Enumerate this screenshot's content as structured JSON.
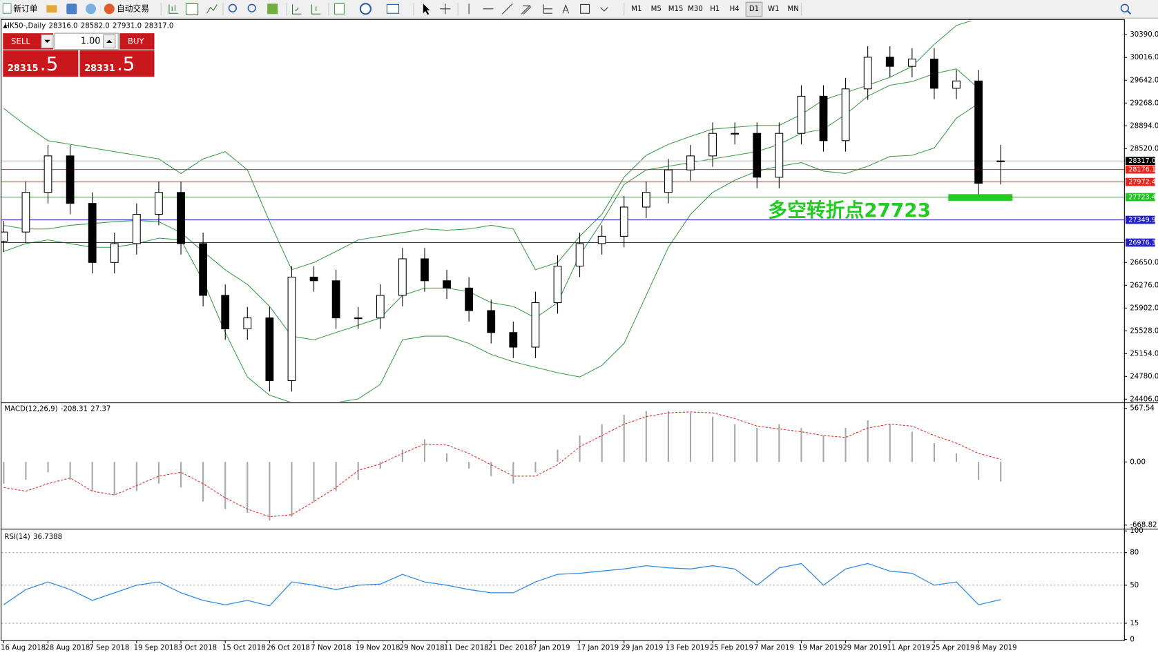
{
  "toolbar": {
    "new_order": "新订单",
    "auto_trading": "自动交易",
    "timeframes": [
      "M1",
      "M5",
      "M15",
      "M30",
      "H1",
      "H4",
      "D1",
      "W1",
      "MN"
    ],
    "active": "D1"
  },
  "trade_panel": {
    "sell": "SELL",
    "buy": "BUY",
    "lots": "1.00",
    "sell_price": "28315",
    "sell_pips": ".5",
    "buy_price": "28331",
    "buy_pips": ".5"
  },
  "chart_data": [
    {
      "type": "candlestick",
      "legend": {
        "name": "HK50-,Daily",
        "values": [
          "28316.0",
          "28582.0",
          "27931.0",
          "28317.0"
        ]
      },
      "categories": [
        "16 Aug 2018",
        null,
        "28 Aug 2018",
        null,
        "7 Sep 2018",
        null,
        "19 Sep 2018",
        null,
        "3 Oct 2018",
        null,
        "15 Oct 2018",
        null,
        "26 Oct 2018",
        null,
        "7 Nov 2018",
        null,
        "19 Nov 2018",
        null,
        "29 Nov 2018",
        null,
        "11 Dec 2018",
        null,
        "21 Dec 2018",
        null,
        "7 Jan 2019",
        null,
        "17 Jan 2019",
        null,
        "29 Jan 2019",
        null,
        "13 Feb 2019",
        null,
        "25 Feb 2019",
        null,
        "7 Mar 2019",
        null,
        "19 Mar 2019",
        null,
        "29 Mar 2019",
        null,
        "11 Apr 2019",
        null,
        "25 Apr 2019",
        null,
        "8 May 2019",
        null
      ],
      "open": [
        27000,
        27150,
        27800,
        28400,
        27620,
        26650,
        26960,
        27440,
        27800,
        26960,
        26110,
        25560,
        25740,
        24710,
        26410,
        26350,
        25740,
        25740,
        26110,
        26710,
        26350,
        26230,
        25860,
        25500,
        25260,
        25990,
        26590,
        26960,
        27080,
        27560,
        27800,
        28170,
        28400,
        28770,
        28770,
        28050,
        28770,
        29380,
        28650,
        29500,
        30020,
        29870,
        29990,
        29510,
        29630,
        28316
      ],
      "high": [
        27330,
        27980,
        28580,
        28580,
        27800,
        27140,
        27620,
        27980,
        27980,
        27140,
        26290,
        25920,
        25920,
        26590,
        26590,
        26530,
        25920,
        26290,
        26890,
        26890,
        26530,
        26410,
        26040,
        25680,
        26170,
        26770,
        27140,
        27260,
        27740,
        27980,
        28350,
        28580,
        28950,
        28950,
        28950,
        28950,
        29560,
        29560,
        29680,
        30200,
        30200,
        30170,
        30170,
        29810,
        29810,
        28582
      ],
      "low": [
        26820,
        26970,
        27620,
        27440,
        26470,
        26470,
        26780,
        27260,
        26780,
        25930,
        25380,
        25380,
        24530,
        24530,
        26170,
        25560,
        25560,
        25560,
        25930,
        26170,
        26050,
        25680,
        25320,
        25080,
        25080,
        25810,
        26410,
        26780,
        26900,
        27380,
        27620,
        27990,
        28220,
        28590,
        27870,
        27870,
        28590,
        28470,
        28470,
        29320,
        29690,
        29690,
        29330,
        29330,
        27770,
        27931
      ],
      "close": [
        27150,
        27800,
        28400,
        27620,
        26650,
        26960,
        27440,
        27800,
        26960,
        26110,
        25560,
        25740,
        24710,
        26410,
        26350,
        25740,
        25740,
        26110,
        26710,
        26350,
        26230,
        25860,
        25500,
        25260,
        25990,
        26590,
        26960,
        27080,
        27560,
        27800,
        28170,
        28400,
        28770,
        28770,
        28050,
        28770,
        29380,
        28650,
        29500,
        30020,
        29870,
        29990,
        29510,
        29630,
        27950,
        28317
      ],
      "bands": {
        "color": "#3a9d46",
        "upper": [
          29180,
          28900,
          28650,
          28590,
          28530,
          28470,
          28410,
          28350,
          28110,
          28350,
          28470,
          28170,
          27320,
          26530,
          26650,
          26830,
          27020,
          27080,
          27140,
          27200,
          27180,
          27200,
          27260,
          27200,
          26530,
          26650,
          27080,
          27440,
          28050,
          28410,
          28590,
          28720,
          28840,
          28870,
          28900,
          28900,
          29080,
          29320,
          29440,
          29560,
          29690,
          29870,
          30230,
          30540,
          30660,
          null
        ],
        "middle": [
          27260,
          27200,
          27200,
          27260,
          27290,
          27320,
          27340,
          27320,
          27140,
          26830,
          26530,
          26290,
          25930,
          25440,
          25380,
          25500,
          25620,
          25740,
          26110,
          26230,
          26230,
          26170,
          25990,
          25930,
          25740,
          25990,
          26770,
          27320,
          27930,
          28170,
          28230,
          28290,
          28350,
          28410,
          28470,
          28590,
          28770,
          28840,
          29080,
          29380,
          29560,
          29620,
          29750,
          29830,
          29510,
          null
        ],
        "lower": [
          26830,
          26960,
          27020,
          26960,
          26900,
          26900,
          26960,
          27050,
          27020,
          26350,
          25500,
          24770,
          24470,
          24350,
          24350,
          24350,
          24410,
          24650,
          25380,
          25440,
          25440,
          25320,
          25140,
          25020,
          24930,
          24840,
          24770,
          24960,
          25320,
          26110,
          26900,
          27440,
          27800,
          28000,
          28150,
          28230,
          28290,
          28150,
          28110,
          28230,
          28390,
          28410,
          28530,
          29020,
          29260,
          null
        ]
      },
      "up_color": "#ffffff",
      "down_color": "#000000",
      "ylim": [
        24364,
        30620
      ],
      "yticks": [
        {
          "value": 30390,
          "label": "30390.0"
        },
        {
          "value": 30016,
          "label": "30016.0"
        },
        {
          "value": 29642,
          "label": "29642.0"
        },
        {
          "value": 29268,
          "label": "29268.0"
        },
        {
          "value": 28894,
          "label": "28894.0"
        },
        {
          "value": 28520,
          "label": "28520.0"
        },
        {
          "value": 26650,
          "label": "26650.0"
        },
        {
          "value": 26276,
          "label": "26276.0"
        },
        {
          "value": 25902,
          "label": "25902.0"
        },
        {
          "value": 25528,
          "label": "25528.0"
        },
        {
          "value": 25154,
          "label": "25154.0"
        },
        {
          "value": 24780,
          "label": "24780.0"
        },
        {
          "value": 24406,
          "label": "24406.0"
        }
      ],
      "price_lines": [
        {
          "value": 28317.0,
          "label": "28317.0",
          "color": "#c0c0c0",
          "label_color": "#000000"
        },
        {
          "value": 28176.1,
          "label": "28176.1",
          "color": "#e8251f",
          "label_color": "#e8251f"
        },
        {
          "value": 27972.4,
          "label": "27972.4",
          "color": "#e8251f",
          "label_color": "#e8251f"
        },
        {
          "value": 27723.4,
          "label": "27723.4",
          "color": "#22c322",
          "label_color": "#22c322"
        },
        {
          "value": 27349.9,
          "label": "27349.9",
          "color": "#2323c8",
          "label_color": "#2323c8"
        },
        {
          "value": 26976.3,
          "label": "26976.3",
          "color": "#2323c8",
          "label_color": "#2323c8"
        }
      ],
      "annotation": {
        "text": "多空转折点27723",
        "color": "#22cc22"
      }
    },
    {
      "type": "macd",
      "legend": {
        "name": "MACD(12,26,9)",
        "values": [
          "-208.31",
          "27.37"
        ]
      },
      "histogram": [
        -230,
        -190,
        -110,
        -190,
        -310,
        -350,
        -310,
        -230,
        -270,
        -420,
        -500,
        -540,
        -620,
        -580,
        -420,
        -310,
        -190,
        -70,
        130,
        240,
        90,
        -70,
        -150,
        -230,
        -110,
        130,
        280,
        400,
        500,
        540,
        540,
        520,
        480,
        400,
        360,
        400,
        360,
        280,
        360,
        440,
        400,
        320,
        200,
        90,
        -190,
        -208.31
      ],
      "signal": [
        -270,
        -310,
        -230,
        -170,
        -310,
        -350,
        -250,
        -150,
        -110,
        -230,
        -380,
        -500,
        -580,
        -560,
        -420,
        -270,
        -90,
        -20,
        90,
        190,
        180,
        90,
        -30,
        -150,
        -150,
        -30,
        160,
        280,
        400,
        480,
        520,
        530,
        520,
        460,
        380,
        350,
        320,
        280,
        260,
        360,
        400,
        380,
        280,
        200,
        90,
        27.37
      ],
      "histogram_color": "#a9a9a9",
      "signal_color": "#e8251f",
      "ylim": [
        -692,
        607
      ],
      "yticks": [
        567.54,
        {
          "value": 0,
          "label": "0.00"
        },
        -668.82
      ]
    },
    {
      "type": "line",
      "legend": {
        "name": "RSI(14)",
        "values": [
          "36.7388"
        ]
      },
      "values": [
        32,
        46,
        53,
        46,
        36,
        43,
        50,
        53,
        43,
        36,
        32,
        36,
        31,
        53,
        50,
        46,
        50,
        51,
        60,
        53,
        50,
        46,
        43,
        43,
        53,
        60,
        61,
        63,
        65,
        68,
        66,
        65,
        68,
        65,
        50,
        66,
        70,
        50,
        65,
        70,
        63,
        61,
        50,
        53,
        32,
        36.7388
      ],
      "color": "#2e8ae6",
      "ylim": [
        0,
        100
      ],
      "yticks": [
        100,
        80,
        50,
        15,
        0
      ],
      "grid": true
    }
  ]
}
